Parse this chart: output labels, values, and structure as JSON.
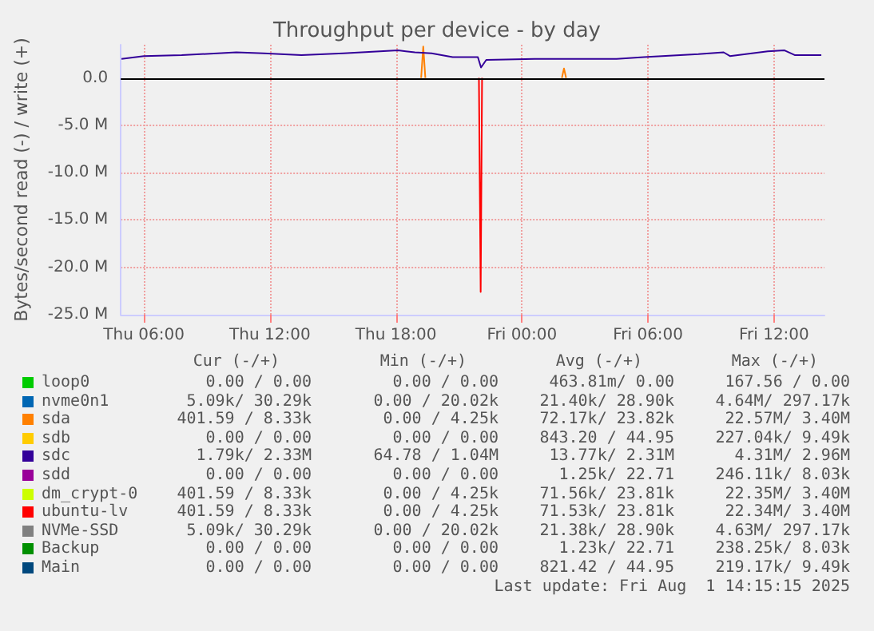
{
  "chart_data": {
    "type": "line",
    "title": "Throughput per device - by day",
    "ylabel": "Bytes/second read (-) / write (+)",
    "xlim": [
      "2025-07-31T04:54",
      "2025-08-01T14:24"
    ],
    "xticks": [
      {
        "value": "2025-07-31T06:00",
        "label": "Thu 06:00"
      },
      {
        "value": "2025-07-31T12:00",
        "label": "Thu 12:00"
      },
      {
        "value": "2025-07-31T18:00",
        "label": "Thu 18:00"
      },
      {
        "value": "2025-08-01T00:00",
        "label": "Fri 00:00"
      },
      {
        "value": "2025-08-01T06:00",
        "label": "Fri 06:00"
      },
      {
        "value": "2025-08-01T12:00",
        "label": "Fri 12:00"
      }
    ],
    "ylim": [
      -25,
      3.5
    ],
    "yticks": [
      {
        "value": -25,
        "label": "-25.0 M"
      },
      {
        "value": -20,
        "label": "-20.0 M"
      },
      {
        "value": -15,
        "label": "-15.0 M"
      },
      {
        "value": -10,
        "label": "-10.0 M"
      },
      {
        "value": -5,
        "label": "-5.0 M"
      },
      {
        "value": 0,
        "label": "0.0"
      }
    ],
    "grid": true,
    "legend": "bottom",
    "line_style": "solid",
    "ref_lines": [
      {
        "axis": "y",
        "value": 0,
        "color": "#000000"
      }
    ],
    "series": [
      {
        "name": "loop0",
        "color": "#00cc00"
      },
      {
        "name": "nvme0n1",
        "color": "#0066b3"
      },
      {
        "name": "sda",
        "color": "#ff8000",
        "x": [
          "2025-07-31T19:12",
          "2025-07-31T19:18",
          "2025-07-31T19:24",
          "2025-08-01T00:00",
          "2025-08-01T01:54",
          "2025-08-01T02:00",
          "2025-08-01T02:06"
        ],
        "values": [
          0,
          3.3,
          0,
          null,
          0,
          1.0,
          0
        ]
      },
      {
        "name": "sdb",
        "color": "#ffcc00"
      },
      {
        "name": "sdc",
        "color": "#330099",
        "x": [
          "2025-07-31T04:56",
          "2025-07-31T06:00",
          "2025-07-31T07:48",
          "2025-07-31T10:24",
          "2025-07-31T11:42",
          "2025-07-31T13:30",
          "2025-07-31T15:30",
          "2025-07-31T18:06",
          "2025-07-31T18:54",
          "2025-07-31T19:42",
          "2025-07-31T20:42",
          "2025-07-31T21:54",
          "2025-07-31T22:03",
          "2025-07-31T22:18",
          "2025-08-01T00:36",
          "2025-08-01T04:30",
          "2025-08-01T05:48",
          "2025-08-01T08:24",
          "2025-08-01T09:36",
          "2025-08-01T09:54",
          "2025-08-01T11:42",
          "2025-08-01T12:30",
          "2025-08-01T13:00",
          "2025-08-01T14:15"
        ],
        "values": [
          2.0,
          2.3,
          2.4,
          2.7,
          2.6,
          2.4,
          2.6,
          2.9,
          2.7,
          2.6,
          2.2,
          2.2,
          1.1,
          1.9,
          2.0,
          2.0,
          2.2,
          2.5,
          2.7,
          2.3,
          2.8,
          2.9,
          2.4,
          2.4
        ]
      },
      {
        "name": "sdd",
        "color": "#990099"
      },
      {
        "name": "dm_crypt-0",
        "color": "#ccff00"
      },
      {
        "name": "ubuntu-lv",
        "color": "#ff0000",
        "x": [
          "2025-07-31T21:57",
          "2025-07-31T22:02",
          "2025-07-31T22:06"
        ],
        "values": [
          0,
          -22.6,
          0
        ]
      },
      {
        "name": "NVMe-SSD",
        "color": "#808080"
      },
      {
        "name": "Backup",
        "color": "#008f00"
      },
      {
        "name": "Main",
        "color": "#00487d"
      }
    ],
    "annotations": [
      "Cur (-/+)",
      "Min (-/+)",
      "Avg (-/+)",
      "Max (-/+)",
      "0.00 / 0.00",
      "0.00 / 0.00",
      "463.81m/ 0.00",
      "167.56 / 0.00",
      "5.09k/ 30.29k",
      "0.00 / 20.02k",
      "21.40k/ 28.90k",
      "4.64M/ 297.17k",
      "401.59 / 8.33k",
      "0.00 / 4.25k",
      "72.17k/ 23.82k",
      "22.57M/ 3.40M",
      "0.00 / 0.00",
      "0.00 / 0.00",
      "843.20 / 44.95",
      "227.04k/ 9.49k",
      "1.79k/ 2.33M",
      "64.78 / 1.04M",
      "13.77k/ 2.31M",
      "4.31M/ 2.96M",
      "0.00 / 0.00",
      "0.00 / 0.00",
      "1.25k/ 22.71",
      "246.11k/ 8.03k",
      "401.59 / 8.33k",
      "0.00 / 4.25k",
      "71.56k/ 23.81k",
      "22.35M/ 3.40M",
      "401.59 / 8.33k",
      "0.00 / 4.25k",
      "71.53k/ 23.81k",
      "22.34M/ 3.40M",
      "5.09k/ 30.29k",
      "0.00 / 20.02k",
      "21.38k/ 28.90k",
      "4.63M/ 297.17k",
      "0.00 / 0.00",
      "0.00 / 0.00",
      "1.23k/ 22.71",
      "238.25k/ 8.03k",
      "0.00 / 0.00",
      "0.00 / 0.00",
      "821.42 / 44.95",
      "219.17k/ 9.49k",
      "Last update: Fri Aug  1 14:15:15 2025"
    ]
  }
}
